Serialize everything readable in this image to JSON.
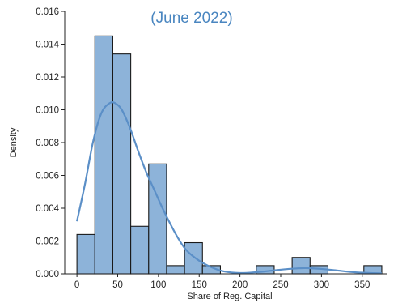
{
  "chart_data": {
    "type": "bar",
    "subtitle": "(June 2022)",
    "xlabel": "Share of Reg. Capital",
    "ylabel": "Density",
    "xlim": [
      -15,
      380
    ],
    "ylim": [
      0,
      0.016
    ],
    "x_ticks": [
      0,
      50,
      100,
      150,
      200,
      250,
      300,
      350
    ],
    "y_ticks": [
      0.0,
      0.002,
      0.004,
      0.006,
      0.008,
      0.01,
      0.012,
      0.014,
      0.016
    ],
    "y_tick_labels": [
      "0.000",
      "0.002",
      "0.004",
      "0.006",
      "0.008",
      "0.010",
      "0.012",
      "0.014",
      "0.016"
    ],
    "grid": false,
    "bins": [
      {
        "x0": 0,
        "x1": 22,
        "value": 0.0024
      },
      {
        "x0": 22,
        "x1": 44,
        "value": 0.0145
      },
      {
        "x0": 44,
        "x1": 66,
        "value": 0.0134
      },
      {
        "x0": 66,
        "x1": 88,
        "value": 0.0029
      },
      {
        "x0": 88,
        "x1": 110,
        "value": 0.0067
      },
      {
        "x0": 110,
        "x1": 132,
        "value": 0.0005
      },
      {
        "x0": 132,
        "x1": 154,
        "value": 0.0019
      },
      {
        "x0": 154,
        "x1": 176,
        "value": 0.0005
      },
      {
        "x0": 176,
        "x1": 198,
        "value": 0.0
      },
      {
        "x0": 198,
        "x1": 220,
        "value": 0.0
      },
      {
        "x0": 220,
        "x1": 242,
        "value": 0.0005
      },
      {
        "x0": 242,
        "x1": 264,
        "value": 0.0
      },
      {
        "x0": 264,
        "x1": 286,
        "value": 0.001
      },
      {
        "x0": 286,
        "x1": 308,
        "value": 0.0005
      },
      {
        "x0": 308,
        "x1": 330,
        "value": 0.0
      },
      {
        "x0": 330,
        "x1": 352,
        "value": 0.0
      },
      {
        "x0": 352,
        "x1": 374,
        "value": 0.0005
      }
    ],
    "kde": {
      "x": [
        0,
        10,
        20,
        30,
        40,
        47,
        55,
        65,
        75,
        85,
        95,
        105,
        115,
        125,
        135,
        150,
        165,
        180,
        200,
        220,
        240,
        260,
        280,
        300,
        320,
        340,
        360,
        374
      ],
      "y": [
        0.0032,
        0.0055,
        0.0081,
        0.0098,
        0.0104,
        0.0104,
        0.01,
        0.0089,
        0.0075,
        0.0062,
        0.0051,
        0.004,
        0.003,
        0.0021,
        0.0014,
        0.0008,
        0.0004,
        0.00015,
        5e-05,
        0.0001,
        0.0002,
        0.0003,
        0.00035,
        0.0003,
        0.0002,
        0.0001,
        5e-05,
        3e-05
      ]
    },
    "colors": {
      "bar_fill": "#8db3d9",
      "bar_edge": "#1a1a1a",
      "kde_line": "#5b8fc7",
      "subtitle": "#4a86c0"
    }
  }
}
